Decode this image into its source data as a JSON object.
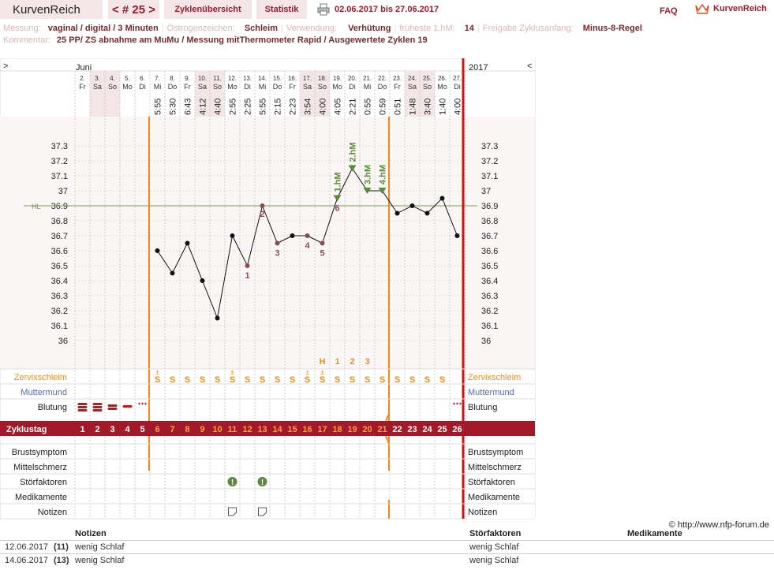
{
  "nav": {
    "brand": "KurvenReich",
    "cycle": "< # 25 >",
    "overview": "Zyklenübersicht",
    "stats": "Statistik",
    "range": "02.06.2017 bis 27.06.2017",
    "faq": "FAQ",
    "logo": "KurvenReich"
  },
  "meta": {
    "messung_label": "Messung:",
    "messung": "vaginal / digital / 3 Minuten",
    "oestrogen_label": "Östrogenzeichen:",
    "oestrogen": "Schleim",
    "verwendung_label": "Verwendung:",
    "verwendung": "Verhütung",
    "hm_label": "früheste 1.hM:",
    "hm": "14",
    "freigabe_label": "Freigabe Zyklusanfang:",
    "freigabe": "Minus-8-Regel",
    "kommentar_label": "Kommentar:",
    "kommentar": "25 PP/  ZS abnahme am MuMu / Messung mitThermometer Rapid / Ausgewertete Zyklen 19"
  },
  "chart_data": {
    "type": "line",
    "month_label": "Juni",
    "year_label": "2017",
    "left_arrow": ">",
    "right_arrow": "<",
    "dates": [
      "2.",
      "3.",
      "4.",
      "5.",
      "6.",
      "7.",
      "8.",
      "9.",
      "10.",
      "11.",
      "12.",
      "13.",
      "14.",
      "15.",
      "16.",
      "17.",
      "18.",
      "19.",
      "20.",
      "21.",
      "22.",
      "23.",
      "24.",
      "25.",
      "26.",
      "27."
    ],
    "weekdays": [
      "Fr",
      "Sa",
      "So",
      "Mo",
      "Di",
      "Mi",
      "Do",
      "Fr",
      "Sa",
      "So",
      "Mo",
      "Di",
      "Mi",
      "Do",
      "Fr",
      "Sa",
      "So",
      "Mo",
      "Di",
      "Mi",
      "Do",
      "Fr",
      "Sa",
      "So",
      "Mo",
      "Di"
    ],
    "times": [
      "",
      "",
      "",
      "",
      "",
      "5:55",
      "5:30",
      "6:43",
      "4:12",
      "4:40",
      "2:55",
      "2:25",
      "5:55",
      "2:15",
      "2:23",
      "3:54",
      "4:00",
      "4:05",
      "2:21",
      "0:55",
      "0:59",
      "0:51",
      "1:48",
      "3:40",
      "1:40",
      "4:00"
    ],
    "cycle_days": [
      "1",
      "2",
      "3",
      "4",
      "5",
      "6",
      "7",
      "8",
      "9",
      "10",
      "11",
      "12",
      "13",
      "14",
      "15",
      "16",
      "17",
      "18",
      "19",
      "20",
      "21",
      "22",
      "23",
      "24",
      "25",
      "26"
    ],
    "temperatures": [
      null,
      null,
      null,
      null,
      null,
      36.6,
      36.45,
      36.65,
      36.4,
      36.15,
      36.7,
      36.5,
      36.9,
      36.65,
      36.7,
      36.7,
      36.65,
      36.95,
      37.15,
      37.0,
      37.0,
      36.85,
      36.9,
      36.85,
      36.95,
      36.7
    ],
    "hl_value": 36.9,
    "hl_label": "HL",
    "y_ticks": [
      "37.3",
      "37.2",
      "37.1",
      "37",
      "36.9",
      "36.8",
      "36.7",
      "36.6",
      "36.5",
      "36.4",
      "36.3",
      "36.2",
      "36.1",
      "36"
    ],
    "ylim": [
      36.0,
      37.3
    ],
    "low_labels": [
      {
        "day": 12,
        "text": "1"
      },
      {
        "day": 13,
        "text": "2"
      },
      {
        "day": 14,
        "text": "3"
      },
      {
        "day": 16,
        "text": "4"
      },
      {
        "day": 17,
        "text": "5"
      },
      {
        "day": 18,
        "text": "6"
      }
    ],
    "high_labels": [
      {
        "day": 18,
        "text": "1.hM"
      },
      {
        "day": 19,
        "text": "2.hM"
      },
      {
        "day": 20,
        "text": "3.hM"
      },
      {
        "day": 21,
        "text": "4.hM"
      }
    ],
    "mucus_peak_labels": [
      {
        "day": 17,
        "text": "H"
      },
      {
        "day": 18,
        "text": "1"
      },
      {
        "day": 19,
        "text": "2"
      },
      {
        "day": 20,
        "text": "3"
      }
    ],
    "mucus": [
      "",
      "",
      "",
      "",
      "",
      "S+",
      "S",
      "S",
      "S",
      "S",
      "S+",
      "S",
      "S",
      "S",
      "S",
      "S+",
      "S+",
      "S",
      "S",
      "S",
      "S",
      "S",
      "S",
      "S",
      "S",
      ""
    ],
    "bleeding": [
      "heavy",
      "heavy",
      "medium",
      "light",
      "spotting",
      "",
      "",
      "",
      "",
      "",
      "",
      "",
      "",
      "",
      "",
      "",
      "",
      "",
      "",
      "",
      "",
      "",
      "",
      "",
      "",
      "spotting"
    ],
    "stoerfaktoren_days": [
      11,
      13
    ],
    "notizen_days": [
      11,
      13
    ],
    "row_labels": {
      "zervix": "Zervixschleim",
      "mumu": "Muttermund",
      "blutung": "Blutung",
      "zyklustag": "Zyklustag",
      "brust": "Brustsymptom",
      "mittel": "Mittelschmerz",
      "stoer": "Störfaktoren",
      "medi": "Medikamente",
      "notiz": "Notizen"
    },
    "colors": {
      "accent": "#a01a2a",
      "orange": "#f08c1e",
      "green": "#5a8a3a",
      "blue": "#5566cc",
      "weekend": "#f3e6e6"
    }
  },
  "notes": {
    "copyright": "© http://www.nfp-forum.de",
    "headers": {
      "notizen": "Notizen",
      "stoer": "Störfaktoren",
      "medi": "Medikamente"
    },
    "rows": [
      {
        "date": "12.06.2017",
        "day": "(11)",
        "note": "wenig Schlaf",
        "stoer": "wenig Schlaf"
      },
      {
        "date": "14.06.2017",
        "day": "(13)",
        "note": "wenig Schlaf",
        "stoer": "wenig Schlaf"
      }
    ]
  }
}
